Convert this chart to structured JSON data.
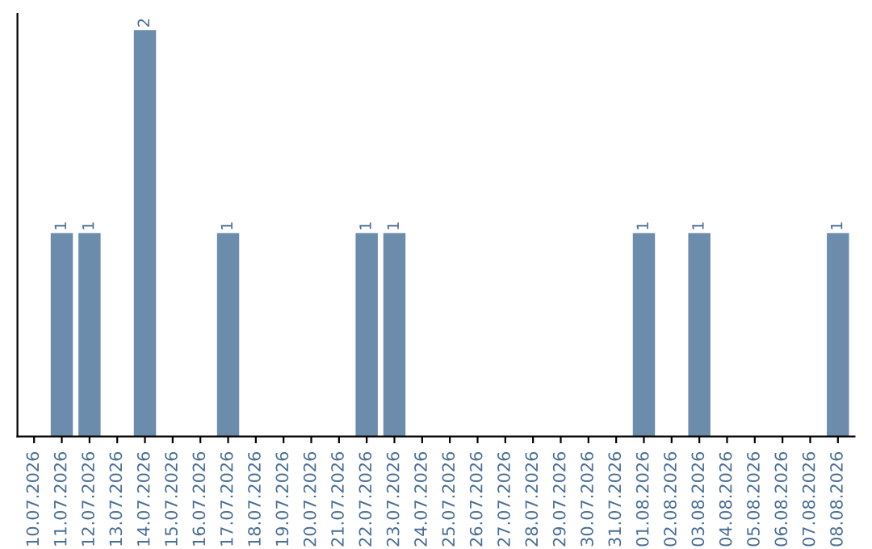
{
  "chart_data": {
    "type": "bar",
    "categories": [
      "10.07.2026",
      "11.07.2026",
      "12.07.2026",
      "13.07.2026",
      "14.07.2026",
      "15.07.2026",
      "16.07.2026",
      "17.07.2026",
      "18.07.2026",
      "19.07.2026",
      "20.07.2026",
      "21.07.2026",
      "22.07.2026",
      "23.07.2026",
      "24.07.2026",
      "25.07.2026",
      "26.07.2026",
      "27.07.2026",
      "28.07.2026",
      "29.07.2026",
      "30.07.2026",
      "31.07.2026",
      "01.08.2026",
      "02.08.2026",
      "03.08.2026",
      "04.08.2026",
      "05.08.2026",
      "06.08.2026",
      "07.08.2026",
      "08.08.2026"
    ],
    "values": [
      0,
      1,
      1,
      0,
      2,
      0,
      0,
      1,
      0,
      0,
      0,
      0,
      1,
      1,
      0,
      0,
      0,
      0,
      0,
      0,
      0,
      0,
      1,
      0,
      1,
      0,
      0,
      0,
      0,
      1
    ],
    "value_labels": [
      null,
      "1",
      "1",
      null,
      "2",
      null,
      null,
      "1",
      null,
      null,
      null,
      null,
      "1",
      "1",
      null,
      null,
      null,
      null,
      null,
      null,
      null,
      null,
      "1",
      null,
      "1",
      null,
      null,
      null,
      null,
      "1"
    ],
    "color": "#6b8cab",
    "tick_labels": "x",
    "grid": false
  }
}
